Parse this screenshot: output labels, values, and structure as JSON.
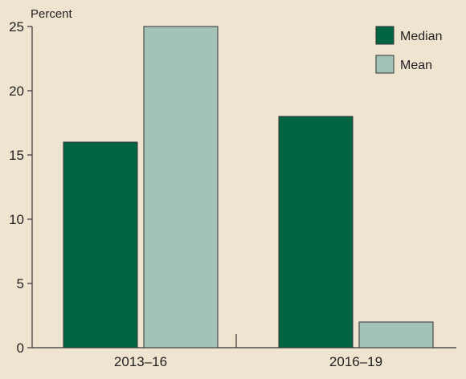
{
  "chart_data": {
    "type": "bar",
    "ylabel": "Percent",
    "ylim": [
      0,
      25
    ],
    "yticks": [
      0,
      5,
      10,
      15,
      20,
      25
    ],
    "categories": [
      "2013–16",
      "2016–19"
    ],
    "series": [
      {
        "name": "Median",
        "values": [
          16,
          18
        ],
        "color": "#006341"
      },
      {
        "name": "Mean",
        "values": [
          25,
          2
        ],
        "color": "#a3c2b8"
      }
    ],
    "grid": false,
    "legend_position": "top-right"
  },
  "colors": {
    "background": "#efe4d0",
    "axis": "#333333"
  }
}
